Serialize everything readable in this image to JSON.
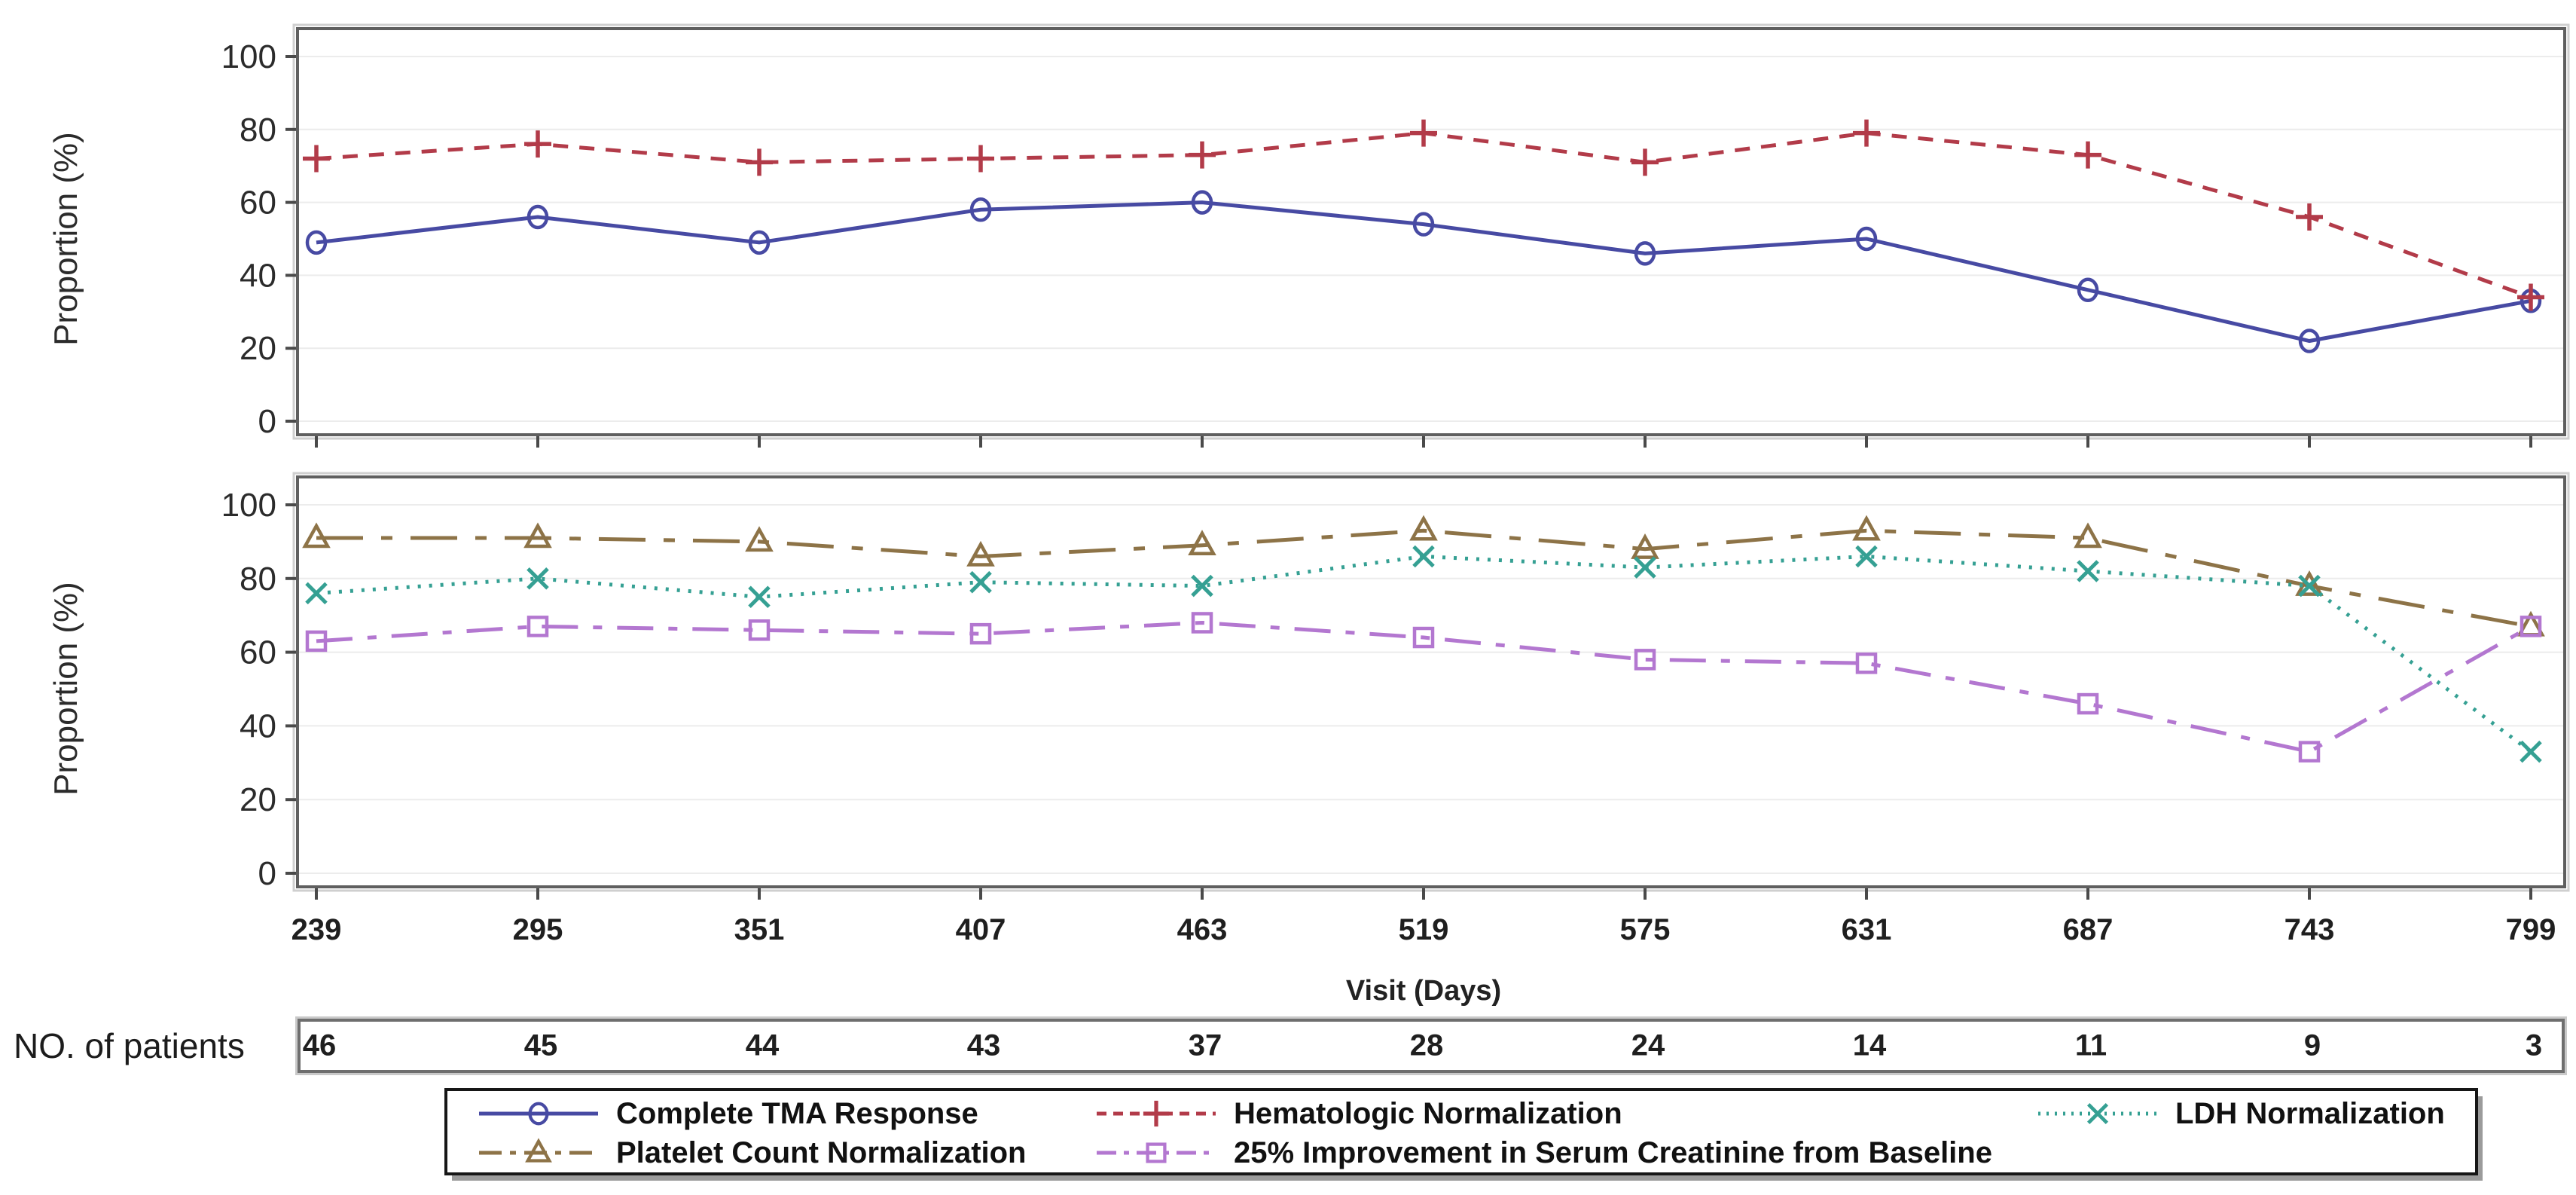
{
  "figure": {
    "xlabel": "Visit (Days)",
    "ylabel_top": "Proportion (%)",
    "ylabel_bottom": "Proportion (%)"
  },
  "patients": {
    "label": "NO. of patients",
    "values": [
      46,
      45,
      44,
      43,
      37,
      28,
      24,
      14,
      11,
      9,
      3
    ]
  },
  "chart_data": [
    {
      "type": "line",
      "panel": "top",
      "title": "",
      "xlabel": "Visit (Days)",
      "ylabel": "Proportion (%)",
      "x": [
        239,
        295,
        351,
        407,
        463,
        519,
        575,
        631,
        687,
        743,
        799
      ],
      "ylim": [
        0,
        100
      ],
      "yticks": [
        0,
        20,
        40,
        60,
        80,
        100
      ],
      "grid": true,
      "series": [
        {
          "key": "tma",
          "name": "Complete TMA Response",
          "color": "#474aa3",
          "marker": "circle",
          "dash": "solid",
          "values": [
            49,
            56,
            49,
            58,
            60,
            54,
            46,
            50,
            36,
            22,
            33
          ]
        },
        {
          "key": "hema",
          "name": "Hematologic Normalization",
          "color": "#b23b49",
          "marker": "plus",
          "dash": "dashed",
          "values": [
            72,
            76,
            71,
            72,
            73,
            79,
            71,
            79,
            73,
            56,
            34
          ]
        }
      ]
    },
    {
      "type": "line",
      "panel": "bottom",
      "title": "",
      "xlabel": "Visit (Days)",
      "ylabel": "Proportion (%)",
      "x": [
        239,
        295,
        351,
        407,
        463,
        519,
        575,
        631,
        687,
        743,
        799
      ],
      "ylim": [
        0,
        100
      ],
      "yticks": [
        0,
        20,
        40,
        60,
        80,
        100
      ],
      "grid": true,
      "series": [
        {
          "key": "plt",
          "name": "Platelet Count Normalization",
          "color": "#8d7347",
          "marker": "triangle",
          "dash": "dashdot",
          "values": [
            91,
            91,
            90,
            86,
            89,
            93,
            88,
            93,
            91,
            78,
            67
          ]
        },
        {
          "key": "ldh",
          "name": "LDH Normalization",
          "color": "#35a093",
          "marker": "x",
          "dash": "dotted",
          "values": [
            76,
            80,
            75,
            79,
            78,
            86,
            83,
            86,
            82,
            78,
            33
          ]
        },
        {
          "key": "cre",
          "name": "25% Improvement in Serum Creatinine from Baseline",
          "color": "#b377d0",
          "marker": "square",
          "dash": "longdash",
          "values": [
            63,
            67,
            66,
            65,
            68,
            64,
            58,
            57,
            46,
            33,
            67
          ]
        }
      ]
    }
  ],
  "legend": {
    "position": "bottom",
    "rows": [
      [
        "tma",
        "hema",
        "ldh"
      ],
      [
        "plt",
        "cre"
      ]
    ]
  }
}
